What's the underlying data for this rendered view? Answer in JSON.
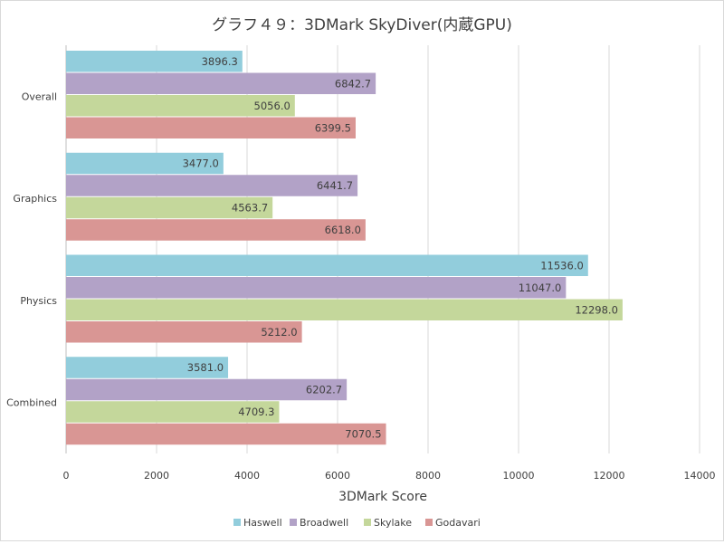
{
  "chart_data": {
    "type": "bar",
    "orientation": "horizontal",
    "title": "グラフ４９：3DMark SkyDiver(内蔵GPU)",
    "xlabel": "3DMark Score",
    "ylabel": "",
    "xlim": [
      0,
      14000
    ],
    "x_ticks": [
      "0",
      "2000",
      "4000",
      "6000",
      "8000",
      "10000",
      "12000",
      "14000"
    ],
    "categories": [
      "Overall",
      "Graphics",
      "Physics",
      "Combined"
    ],
    "grid": "vertical",
    "legend_position": "bottom",
    "series": [
      {
        "name": "Haswell",
        "color": "#92cddc",
        "values": [
          3896.3,
          3477.0,
          11536.0,
          3581.0
        ]
      },
      {
        "name": "Broadwell",
        "color": "#b2a2c7",
        "values": [
          6842.7,
          6441.7,
          11047.0,
          6202.7
        ]
      },
      {
        "name": "Skylake",
        "color": "#c4d79b",
        "values": [
          5056.0,
          4563.7,
          12298.0,
          4709.3
        ]
      },
      {
        "name": "Godavari",
        "color": "#d99694",
        "values": [
          6399.5,
          6618.0,
          5212.0,
          7070.5
        ]
      }
    ],
    "data_labels": [
      [
        "3896.3",
        "3477.0",
        "11536.0",
        "3581.0"
      ],
      [
        "6842.7",
        "6441.7",
        "11047.0",
        "6202.7"
      ],
      [
        "5056.0",
        "4563.7",
        "12298.0",
        "4709.3"
      ],
      [
        "6399.5",
        "6618.0",
        "5212.0",
        "7070.5"
      ]
    ]
  }
}
